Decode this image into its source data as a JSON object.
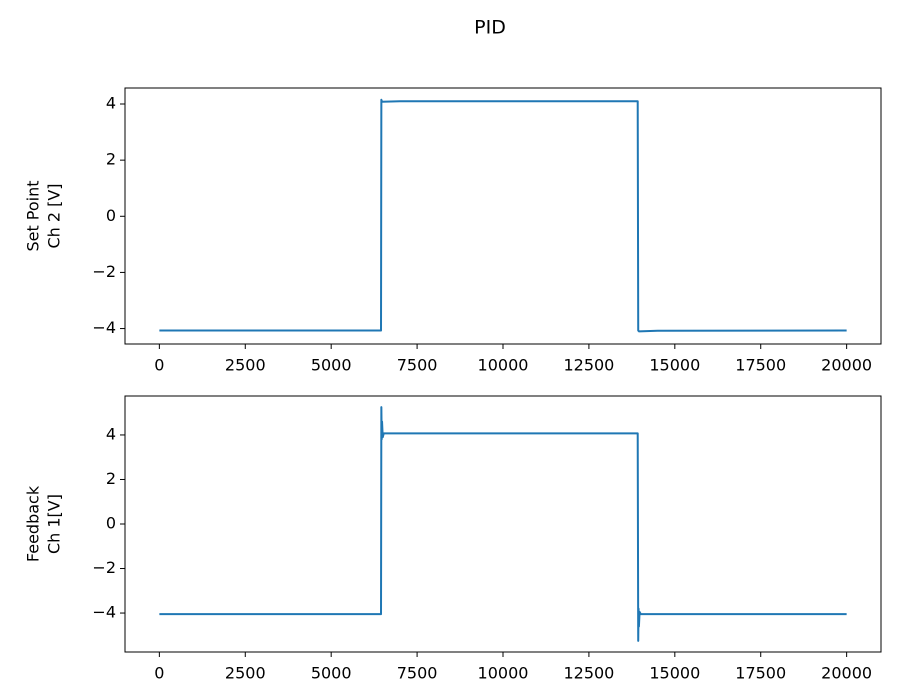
{
  "title": "PID",
  "chart_data": [
    {
      "type": "line",
      "ylabel": [
        "Set Point",
        "Ch 2 [V]"
      ],
      "xlim": [
        -1000,
        21000
      ],
      "ylim": [
        -4.55,
        4.57
      ],
      "xticks": [
        0,
        2500,
        5000,
        7500,
        10000,
        12500,
        15000,
        17500,
        20000
      ],
      "yticks": [
        {
          "value": -4,
          "label": "−4"
        },
        {
          "value": -2,
          "label": "−2"
        },
        0,
        2,
        4
      ],
      "x": [
        0,
        6450,
        6460,
        6480,
        7000,
        13920,
        13935,
        13960,
        14500,
        20000
      ],
      "series": [
        {
          "color": "#1f77b4",
          "values": [
            -4.07,
            -4.07,
            4.15,
            4.08,
            4.1,
            4.1,
            -4.07,
            -4.1,
            -4.08,
            -4.07
          ]
        }
      ]
    },
    {
      "type": "line",
      "ylabel": [
        "Feedback",
        "Ch 1[V]"
      ],
      "xlim": [
        -1000,
        21000
      ],
      "ylim": [
        -5.75,
        5.75
      ],
      "xticks": [
        0,
        2500,
        5000,
        7500,
        10000,
        12500,
        15000,
        17500,
        20000
      ],
      "yticks": [
        {
          "value": -4,
          "label": "−4"
        },
        {
          "value": -2,
          "label": "−2"
        },
        0,
        2,
        4
      ],
      "x": [
        0,
        6450,
        6460,
        6470,
        6480,
        6500,
        6530,
        13920,
        13935,
        13945,
        13955,
        13975,
        14010,
        20000
      ],
      "series": [
        {
          "color": "#1f77b4",
          "values": [
            -4.05,
            -4.05,
            5.25,
            3.8,
            4.6,
            3.9,
            4.07,
            4.07,
            -5.25,
            -3.8,
            -4.6,
            -3.95,
            -4.05,
            -4.05
          ]
        }
      ]
    }
  ]
}
